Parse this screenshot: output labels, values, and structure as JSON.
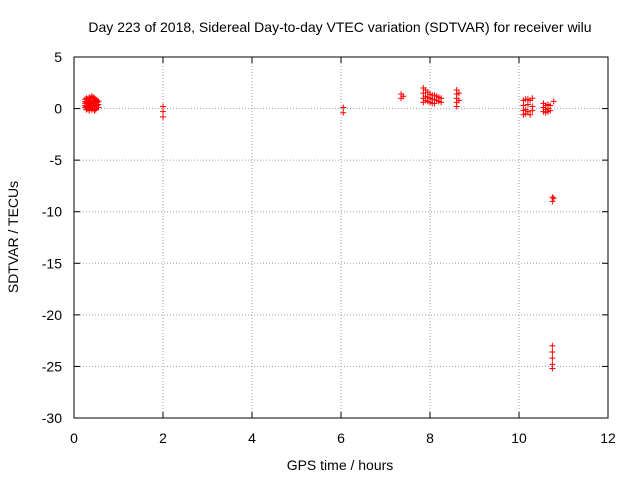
{
  "chart_data": {
    "type": "scatter",
    "title": "Day 223 of 2018, Sidereal Day-to-day VTEC variation (SDTVAR) for receiver wilu",
    "xlabel": "GPS time / hours",
    "ylabel": "SDTVAR / TECUs",
    "xlim": [
      0,
      12
    ],
    "ylim": [
      -30,
      5
    ],
    "xticks": [
      "0",
      "2",
      "4",
      "6",
      "8",
      "10",
      "12"
    ],
    "yticks": [
      "5",
      "0",
      "-5",
      "-10",
      "-15",
      "-20",
      "-25",
      "-30"
    ],
    "grid": true,
    "marker": "plus",
    "colors": {
      "points": "#ff0000",
      "grid": "#a0a0a0",
      "axes": "#000000"
    },
    "series": [
      {
        "name": "SDTVAR",
        "points": [
          [
            0.25,
            0.9
          ],
          [
            0.25,
            0.5
          ],
          [
            0.25,
            0.1
          ],
          [
            0.25,
            0.7
          ],
          [
            0.25,
            0.3
          ],
          [
            0.28,
            1.0
          ],
          [
            0.28,
            0.6
          ],
          [
            0.28,
            0.2
          ],
          [
            0.28,
            -0.1
          ],
          [
            0.31,
            0.9
          ],
          [
            0.31,
            0.5
          ],
          [
            0.31,
            0.0
          ],
          [
            0.31,
            0.7
          ],
          [
            0.31,
            0.3
          ],
          [
            0.34,
            1.1
          ],
          [
            0.34,
            0.6
          ],
          [
            0.34,
            0.2
          ],
          [
            0.34,
            -0.2
          ],
          [
            0.34,
            0.4
          ],
          [
            0.37,
            1.0
          ],
          [
            0.37,
            0.5
          ],
          [
            0.37,
            0.1
          ],
          [
            0.37,
            0.8
          ],
          [
            0.37,
            0.3
          ],
          [
            0.4,
            1.2
          ],
          [
            0.4,
            0.7
          ],
          [
            0.4,
            0.2
          ],
          [
            0.4,
            -0.1
          ],
          [
            0.4,
            0.5
          ],
          [
            0.43,
            1.1
          ],
          [
            0.43,
            0.6
          ],
          [
            0.43,
            0.0
          ],
          [
            0.43,
            0.8
          ],
          [
            0.43,
            0.3
          ],
          [
            0.46,
            1.0
          ],
          [
            0.46,
            0.5
          ],
          [
            0.46,
            -0.2
          ],
          [
            0.46,
            0.7
          ],
          [
            0.46,
            0.2
          ],
          [
            0.49,
            0.9
          ],
          [
            0.49,
            0.4
          ],
          [
            0.49,
            0.0
          ],
          [
            0.49,
            0.6
          ],
          [
            0.49,
            -0.1
          ],
          [
            0.52,
            0.8
          ],
          [
            0.52,
            0.3
          ],
          [
            0.52,
            0.6
          ],
          [
            0.55,
            0.7
          ],
          [
            0.55,
            0.4
          ],
          [
            0.55,
            0.1
          ],
          [
            2.0,
            0.2
          ],
          [
            2.0,
            -0.3
          ],
          [
            2.0,
            -0.8
          ],
          [
            6.05,
            0.1
          ],
          [
            6.05,
            -0.4
          ],
          [
            7.35,
            1.4
          ],
          [
            7.35,
            1.0
          ],
          [
            7.4,
            1.2
          ],
          [
            7.85,
            2.0
          ],
          [
            7.85,
            1.5
          ],
          [
            7.85,
            1.0
          ],
          [
            7.85,
            0.6
          ],
          [
            7.9,
            1.8
          ],
          [
            7.9,
            1.2
          ],
          [
            7.9,
            0.8
          ],
          [
            7.95,
            1.6
          ],
          [
            7.95,
            1.1
          ],
          [
            7.95,
            0.7
          ],
          [
            8.0,
            1.4
          ],
          [
            8.0,
            1.0
          ],
          [
            8.0,
            0.6
          ],
          [
            8.05,
            1.3
          ],
          [
            8.05,
            0.9
          ],
          [
            8.05,
            0.5
          ],
          [
            8.1,
            1.3
          ],
          [
            8.1,
            0.9
          ],
          [
            8.1,
            0.5
          ],
          [
            8.15,
            1.2
          ],
          [
            8.15,
            0.8
          ],
          [
            8.2,
            1.1
          ],
          [
            8.2,
            0.7
          ],
          [
            8.25,
            1.0
          ],
          [
            8.25,
            0.6
          ],
          [
            8.6,
            1.8
          ],
          [
            8.6,
            1.4
          ],
          [
            8.6,
            1.0
          ],
          [
            8.6,
            0.6
          ],
          [
            8.6,
            0.2
          ],
          [
            8.65,
            1.5
          ],
          [
            8.65,
            0.8
          ],
          [
            10.1,
            0.8
          ],
          [
            10.1,
            0.3
          ],
          [
            10.1,
            -0.2
          ],
          [
            10.1,
            -0.6
          ],
          [
            10.15,
            0.9
          ],
          [
            10.15,
            -0.1
          ],
          [
            10.15,
            -0.5
          ],
          [
            10.2,
            0.9
          ],
          [
            10.2,
            0.4
          ],
          [
            10.2,
            -0.3
          ],
          [
            10.25,
            0.8
          ],
          [
            10.25,
            -0.6
          ],
          [
            10.3,
            1.0
          ],
          [
            10.3,
            0.2
          ],
          [
            10.3,
            -0.2
          ],
          [
            10.55,
            0.5
          ],
          [
            10.55,
            0.1
          ],
          [
            10.55,
            -0.3
          ],
          [
            10.6,
            0.3
          ],
          [
            10.6,
            -0.1
          ],
          [
            10.6,
            -0.4
          ],
          [
            10.65,
            0.4
          ],
          [
            10.65,
            0.0
          ],
          [
            10.65,
            -0.3
          ],
          [
            10.7,
            0.3
          ],
          [
            10.7,
            -0.2
          ],
          [
            10.78,
            0.7
          ],
          [
            10.75,
            -8.6
          ],
          [
            10.75,
            -9.0
          ],
          [
            10.78,
            -8.7
          ],
          [
            10.75,
            -23.0
          ],
          [
            10.75,
            -23.6
          ],
          [
            10.75,
            -24.2
          ],
          [
            10.75,
            -24.8
          ],
          [
            10.75,
            -25.2
          ]
        ]
      }
    ]
  }
}
